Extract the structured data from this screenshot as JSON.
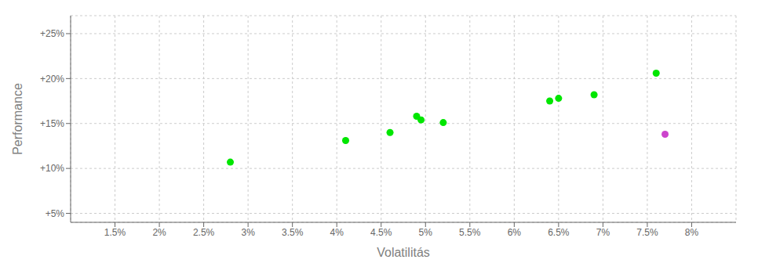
{
  "chart_data": {
    "type": "scatter",
    "xlabel": "Volatilitás",
    "ylabel": "Performance",
    "xlim": [
      0.01,
      0.085
    ],
    "ylim": [
      0.04,
      0.27
    ],
    "xticks": [
      {
        "value": 0.015,
        "label": "1.5%"
      },
      {
        "value": 0.02,
        "label": "2%"
      },
      {
        "value": 0.025,
        "label": "2.5%"
      },
      {
        "value": 0.03,
        "label": "3%"
      },
      {
        "value": 0.035,
        "label": "3.5%"
      },
      {
        "value": 0.04,
        "label": "4%"
      },
      {
        "value": 0.045,
        "label": "4.5%"
      },
      {
        "value": 0.05,
        "label": "5%"
      },
      {
        "value": 0.055,
        "label": "5.5%"
      },
      {
        "value": 0.06,
        "label": "6%"
      },
      {
        "value": 0.065,
        "label": "6.5%"
      },
      {
        "value": 0.07,
        "label": "7%"
      },
      {
        "value": 0.075,
        "label": "7.5%"
      },
      {
        "value": 0.08,
        "label": "8%"
      }
    ],
    "yticks": [
      {
        "value": 0.05,
        "label": "+5%"
      },
      {
        "value": 0.1,
        "label": "+10%"
      },
      {
        "value": 0.15,
        "label": "+15%"
      },
      {
        "value": 0.2,
        "label": "+20%"
      },
      {
        "value": 0.25,
        "label": "+25%"
      }
    ],
    "grid": true,
    "series": [
      {
        "color": "#00e600",
        "x": [
          0.028,
          0.041,
          0.046,
          0.049,
          0.0495,
          0.052,
          0.064,
          0.065,
          0.069,
          0.076
        ],
        "values": [
          0.107,
          0.131,
          0.14,
          0.158,
          0.154,
          0.151,
          0.175,
          0.178,
          0.182,
          0.206
        ]
      },
      {
        "color": "#cc44cc",
        "x": [
          0.077
        ],
        "values": [
          0.138
        ]
      }
    ]
  }
}
